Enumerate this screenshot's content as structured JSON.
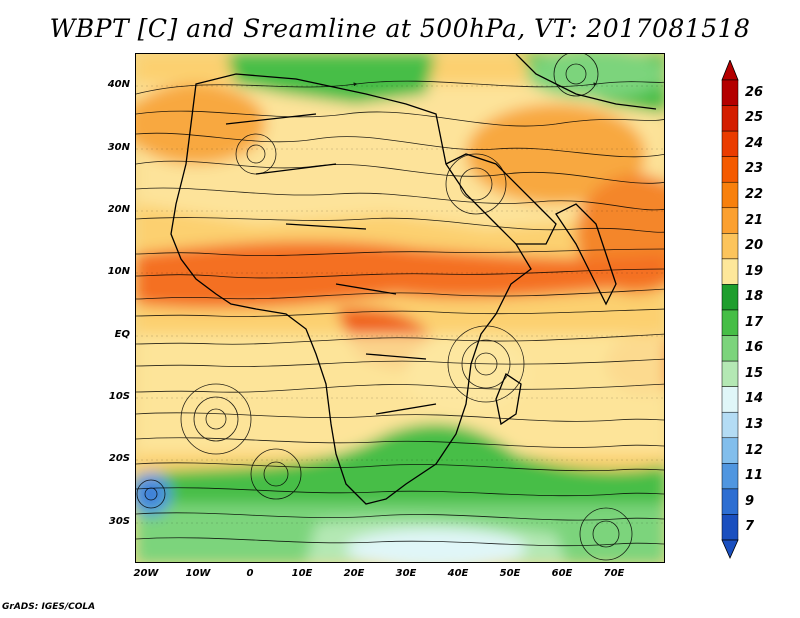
{
  "title": "WBPT [C] and Sreamline at 500hPa, VT: 2017081518",
  "credit": "GrADS: IGES/COLA",
  "lat_ticks": [
    "40N",
    "30N",
    "20N",
    "10N",
    "EQ",
    "10S",
    "20S",
    "30S"
  ],
  "lon_ticks": [
    "20W",
    "10W",
    "0",
    "10E",
    "20E",
    "30E",
    "40E",
    "50E",
    "60E",
    "70E"
  ],
  "colorbar": {
    "levels": [
      "26",
      "25",
      "24",
      "23",
      "22",
      "21",
      "20",
      "19",
      "18",
      "17",
      "16",
      "15",
      "14",
      "13",
      "12",
      "11",
      "9",
      "7"
    ],
    "colors": [
      "#b40000",
      "#d41e00",
      "#ea3c00",
      "#f45a00",
      "#f8800c",
      "#fba030",
      "#fcc45c",
      "#fde79a",
      "#1e9e2d",
      "#46be46",
      "#7cd47c",
      "#b4e8b4",
      "#e0f6f8",
      "#b4dcf4",
      "#82beec",
      "#5096e0",
      "#2d6ed2",
      "#1a4fbf"
    ]
  },
  "map": {
    "lat_range": [
      -36,
      45
    ],
    "lon_range": [
      -22,
      79
    ]
  }
}
